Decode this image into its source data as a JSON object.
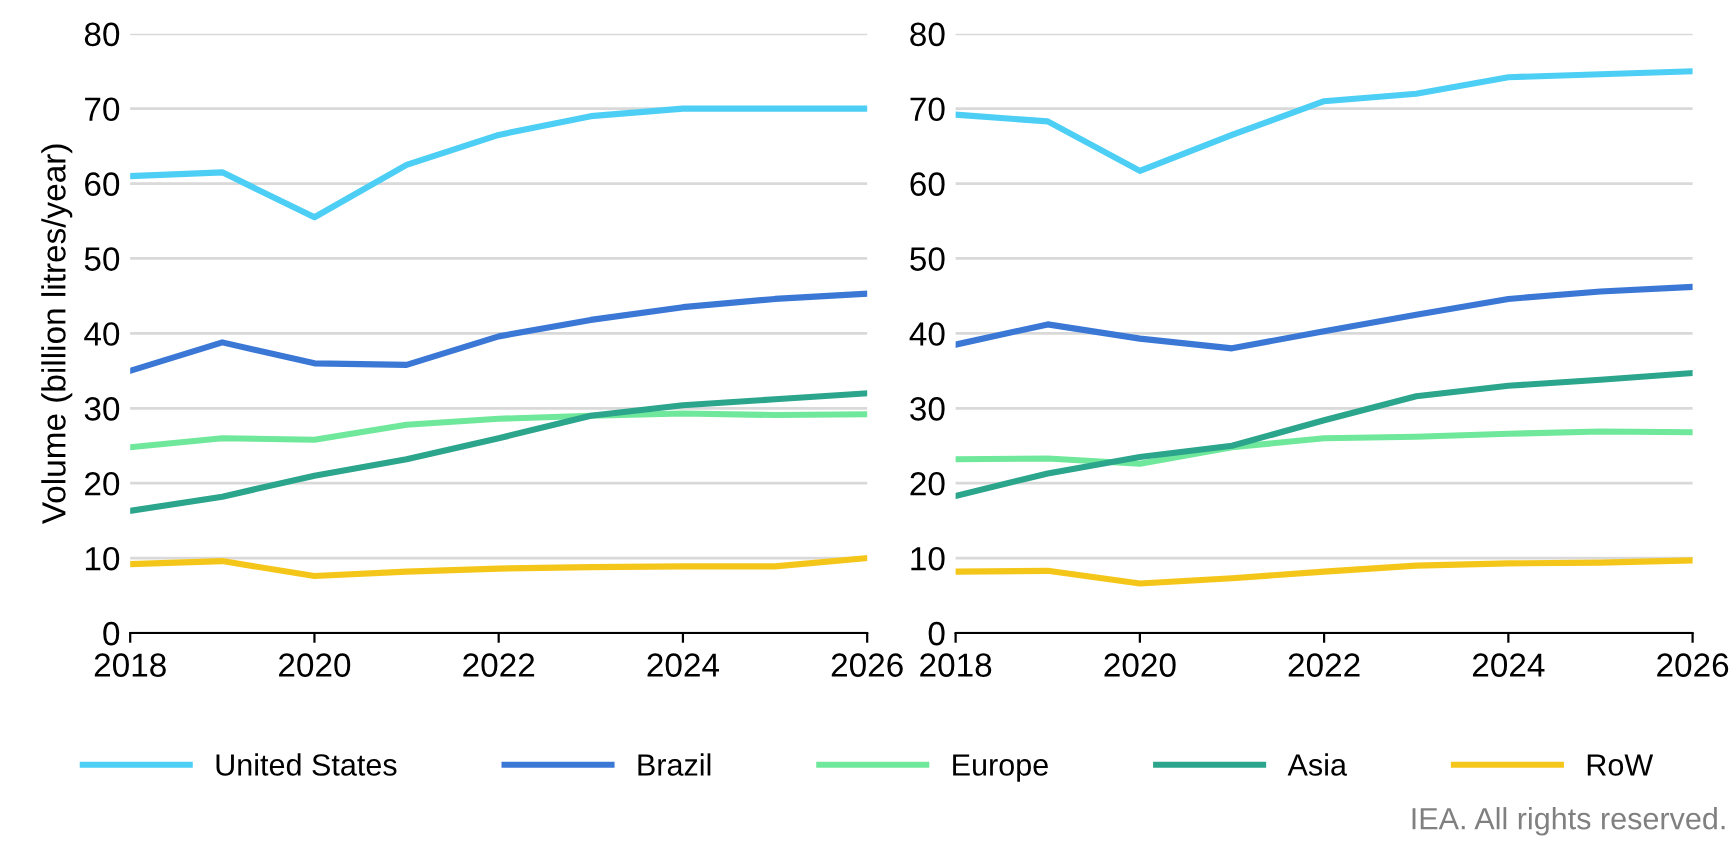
{
  "chart_data": [
    {
      "type": "line",
      "ylabel": "Volume (billion litres/year)",
      "x": [
        2018,
        2019,
        2020,
        2021,
        2022,
        2023,
        2024,
        2025,
        2026
      ],
      "xlim": [
        2018,
        2026
      ],
      "xticks": [
        2018,
        2020,
        2022,
        2024,
        2026
      ],
      "ylim": [
        0,
        80
      ],
      "yticks": [
        0,
        10,
        20,
        30,
        40,
        50,
        60,
        70,
        80
      ],
      "grid": "y",
      "legend": "bottom",
      "marker": "none",
      "line_style": "solid",
      "series": [
        {
          "name": "United States",
          "color": "#4dcff5",
          "values": [
            61,
            61.5,
            55.5,
            62.5,
            66.5,
            69,
            70,
            70,
            70
          ]
        },
        {
          "name": "Brazil",
          "color": "#3b78d6",
          "values": [
            35,
            38.8,
            36,
            35.8,
            39.6,
            41.8,
            43.5,
            44.6,
            45.3
          ]
        },
        {
          "name": "Europe",
          "color": "#6fe89b",
          "values": [
            24.8,
            26,
            25.8,
            27.8,
            28.6,
            29,
            29.3,
            29.1,
            29.2
          ]
        },
        {
          "name": "Asia",
          "color": "#2ba58b",
          "values": [
            16.3,
            18.2,
            21,
            23.2,
            26,
            29,
            30.4,
            31.2,
            32
          ]
        },
        {
          "name": "RoW",
          "color": "#f5c61a",
          "values": [
            9.2,
            9.6,
            7.6,
            8.2,
            8.6,
            8.8,
            8.9,
            8.9,
            10
          ]
        }
      ]
    },
    {
      "type": "line",
      "x": [
        2018,
        2019,
        2020,
        2021,
        2022,
        2023,
        2024,
        2025,
        2026
      ],
      "xlim": [
        2018,
        2026
      ],
      "xticks": [
        2018,
        2020,
        2022,
        2024,
        2026
      ],
      "ylim": [
        0,
        80
      ],
      "yticks": [
        0,
        10,
        20,
        30,
        40,
        50,
        60,
        70,
        80
      ],
      "grid": "y",
      "marker": "none",
      "line_style": "solid",
      "annotations": [
        "IEA. All rights reserved."
      ],
      "series": [
        {
          "color": "#4dcff5",
          "values": [
            69.2,
            68.3,
            61.7,
            66.5,
            71,
            72,
            74.2,
            74.6,
            75
          ]
        },
        {
          "color": "#3b78d6",
          "values": [
            38.5,
            41.2,
            39.3,
            38,
            40.3,
            42.5,
            44.6,
            45.6,
            46.2
          ]
        },
        {
          "color": "#6fe89b",
          "values": [
            23.2,
            23.3,
            22.6,
            24.8,
            26,
            26.2,
            26.6,
            26.9,
            26.8
          ]
        },
        {
          "color": "#2ba58b",
          "values": [
            18.3,
            21.3,
            23.5,
            25,
            28.4,
            31.6,
            33,
            33.8,
            34.7
          ]
        },
        {
          "color": "#f5c61a",
          "values": [
            8.2,
            8.3,
            6.6,
            7.3,
            8.2,
            9,
            9.3,
            9.4,
            9.7
          ]
        }
      ]
    }
  ]
}
